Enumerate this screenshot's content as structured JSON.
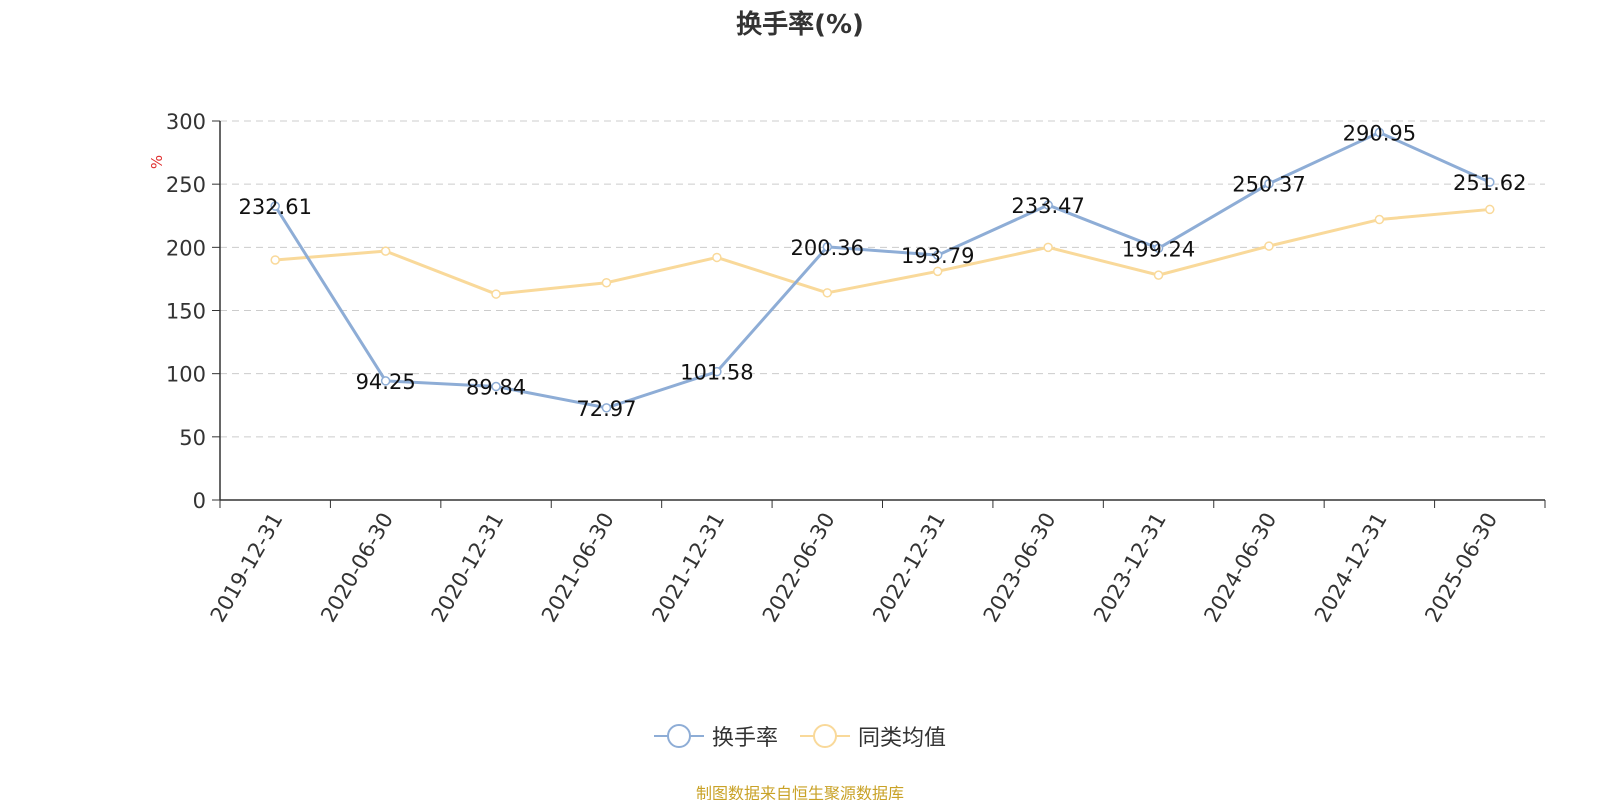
{
  "chart_data": {
    "type": "line",
    "title": "换手率(%)",
    "ylabel": "%",
    "ylim": [
      0,
      300
    ],
    "yticks": [
      0,
      50,
      100,
      150,
      200,
      250,
      300
    ],
    "grid": true,
    "legend_position": "bottom",
    "categories": [
      "2019-12-31",
      "2020-06-30",
      "2020-12-31",
      "2021-06-30",
      "2021-12-31",
      "2022-06-30",
      "2022-12-31",
      "2023-06-30",
      "2023-12-31",
      "2024-06-30",
      "2024-12-31",
      "2025-06-30"
    ],
    "series": [
      {
        "name": "换手率",
        "color": "#8eadd6",
        "values": [
          232.61,
          94.25,
          89.84,
          72.97,
          101.58,
          200.36,
          193.79,
          233.47,
          199.24,
          250.37,
          290.95,
          251.62
        ],
        "labels": [
          "232.61",
          "94.25",
          "89.84",
          "72.97",
          "101.58",
          "200.36",
          "193.79",
          "233.47",
          "199.24",
          "250.37",
          "290.95",
          "251.62"
        ]
      },
      {
        "name": "同类均值",
        "color": "#f9d99a",
        "values": [
          190,
          197,
          163,
          172,
          192,
          164,
          181,
          200,
          178,
          201,
          222,
          230
        ]
      }
    ]
  },
  "source_note": "制图数据来自恒生聚源数据库"
}
